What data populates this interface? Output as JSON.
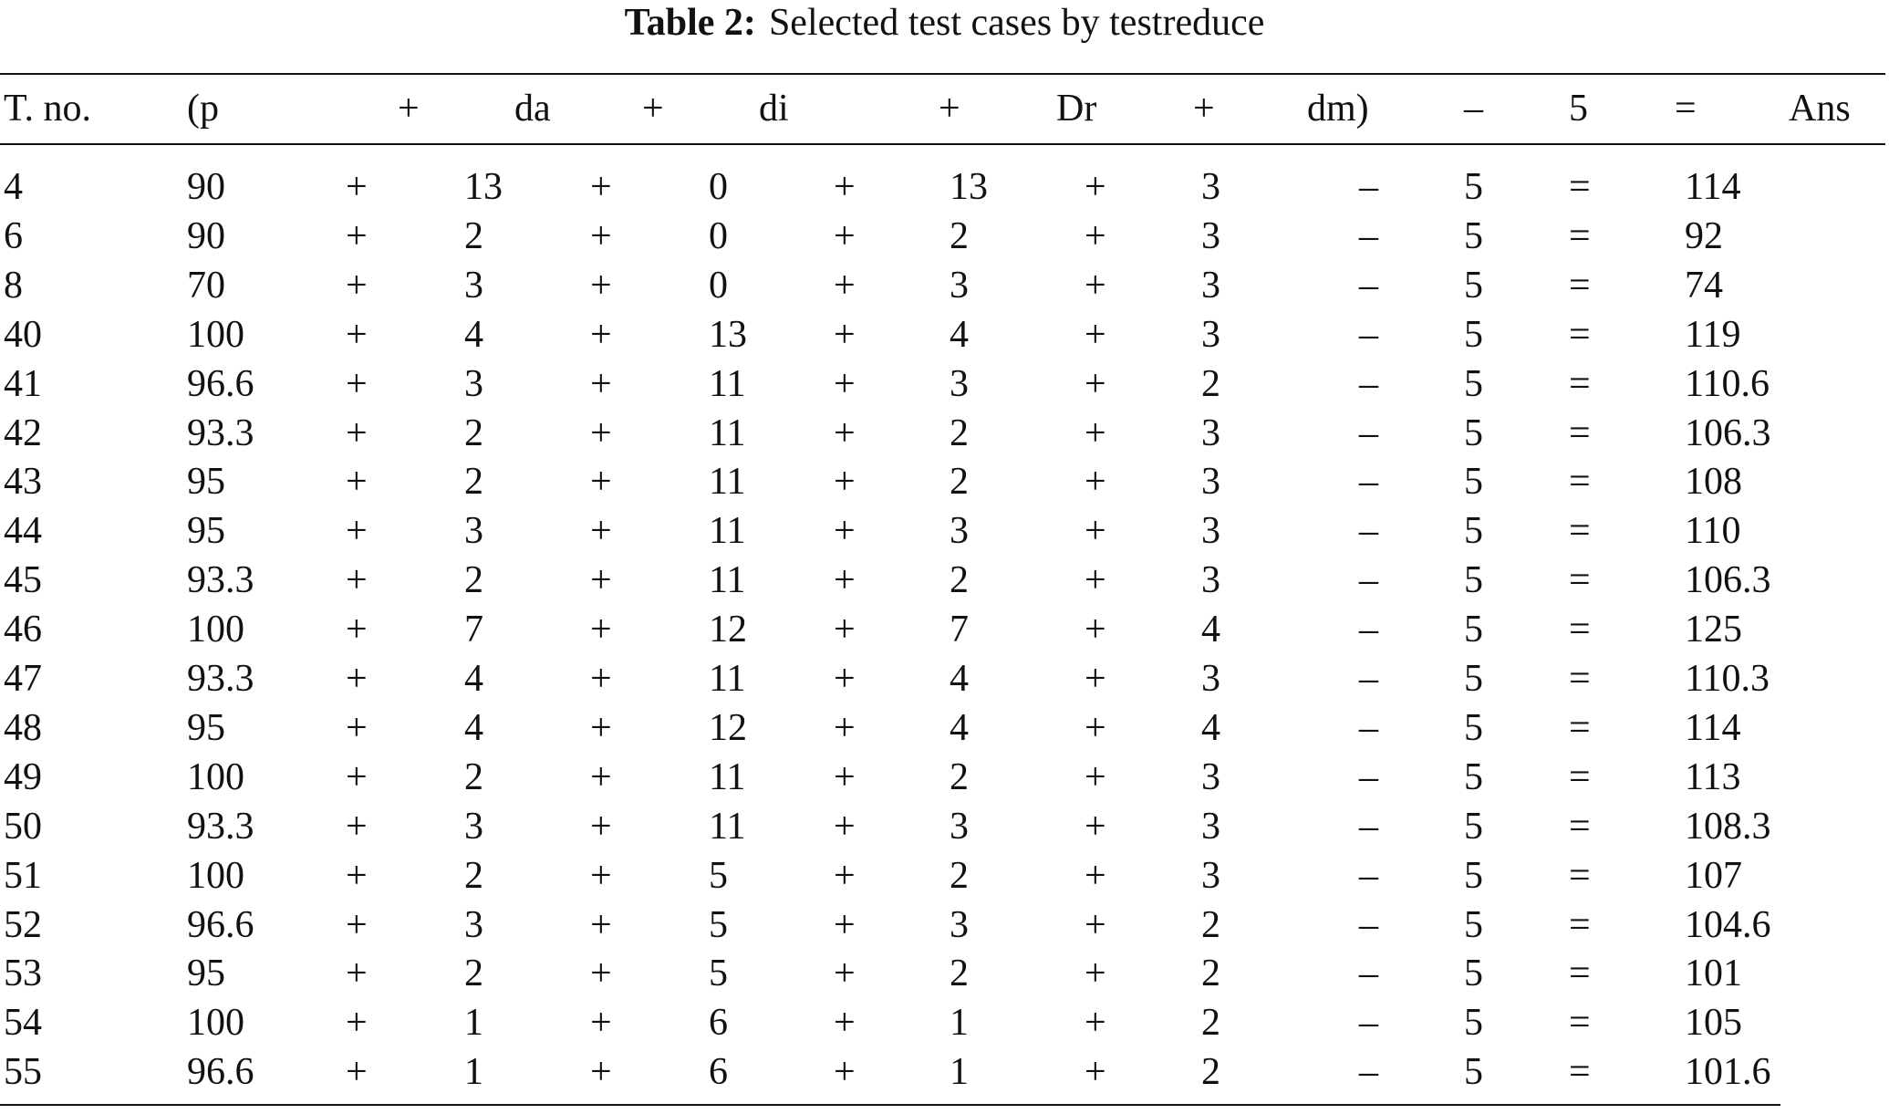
{
  "table": {
    "caption_label": "Table 2:",
    "caption": "Selected test cases by testreduce",
    "header": [
      "T. no.",
      "(p",
      "+",
      "da",
      "+",
      "di",
      "+",
      "Dr",
      "+",
      "dm)",
      "–",
      "5",
      "=",
      "Ans"
    ],
    "rows": [
      [
        "4",
        "90",
        "+",
        "13",
        "+",
        "0",
        "+",
        "13",
        "+",
        "3",
        "–",
        "5",
        "=",
        "114"
      ],
      [
        "6",
        "90",
        "+",
        "2",
        "+",
        "0",
        "+",
        "2",
        "+",
        "3",
        "–",
        "5",
        "=",
        "92"
      ],
      [
        "8",
        "70",
        "+",
        "3",
        "+",
        "0",
        "+",
        "3",
        "+",
        "3",
        "–",
        "5",
        "=",
        "74"
      ],
      [
        "40",
        "100",
        "+",
        "4",
        "+",
        "13",
        "+",
        "4",
        "+",
        "3",
        "–",
        "5",
        "=",
        "119"
      ],
      [
        "41",
        "96.6",
        "+",
        "3",
        "+",
        "11",
        "+",
        "3",
        "+",
        "2",
        "–",
        "5",
        "=",
        "110.6"
      ],
      [
        "42",
        "93.3",
        "+",
        "2",
        "+",
        "11",
        "+",
        "2",
        "+",
        "3",
        "–",
        "5",
        "=",
        "106.3"
      ],
      [
        "43",
        "95",
        "+",
        "2",
        "+",
        "11",
        "+",
        "2",
        "+",
        "3",
        "–",
        "5",
        "=",
        "108"
      ],
      [
        "44",
        "95",
        "+",
        "3",
        "+",
        "11",
        "+",
        "3",
        "+",
        "3",
        "–",
        "5",
        "=",
        "110"
      ],
      [
        "45",
        "93.3",
        "+",
        "2",
        "+",
        "11",
        "+",
        "2",
        "+",
        "3",
        "–",
        "5",
        "=",
        "106.3"
      ],
      [
        "46",
        "100",
        "+",
        "7",
        "+",
        "12",
        "+",
        "7",
        "+",
        "4",
        "–",
        "5",
        "=",
        "125"
      ],
      [
        "47",
        "93.3",
        "+",
        "4",
        "+",
        "11",
        "+",
        "4",
        "+",
        "3",
        "–",
        "5",
        "=",
        "110.3"
      ],
      [
        "48",
        "95",
        "+",
        "4",
        "+",
        "12",
        "+",
        "4",
        "+",
        "4",
        "–",
        "5",
        "=",
        "114"
      ],
      [
        "49",
        "100",
        "+",
        "2",
        "+",
        "11",
        "+",
        "2",
        "+",
        "3",
        "–",
        "5",
        "=",
        "113"
      ],
      [
        "50",
        "93.3",
        "+",
        "3",
        "+",
        "11",
        "+",
        "3",
        "+",
        "3",
        "–",
        "5",
        "=",
        "108.3"
      ],
      [
        "51",
        "100",
        "+",
        "2",
        "+",
        "5",
        "+",
        "2",
        "+",
        "3",
        "–",
        "5",
        "=",
        "107"
      ],
      [
        "52",
        "96.6",
        "+",
        "3",
        "+",
        "5",
        "+",
        "3",
        "+",
        "2",
        "–",
        "5",
        "=",
        "104.6"
      ],
      [
        "53",
        "95",
        "+",
        "2",
        "+",
        "5",
        "+",
        "2",
        "+",
        "2",
        "–",
        "5",
        "=",
        "101"
      ],
      [
        "54",
        "100",
        "+",
        "1",
        "+",
        "6",
        "+",
        "1",
        "+",
        "2",
        "–",
        "5",
        "=",
        "105"
      ],
      [
        "55",
        "96.6",
        "+",
        "1",
        "+",
        "6",
        "+",
        "1",
        "+",
        "2",
        "–",
        "5",
        "=",
        "101.6"
      ]
    ]
  }
}
